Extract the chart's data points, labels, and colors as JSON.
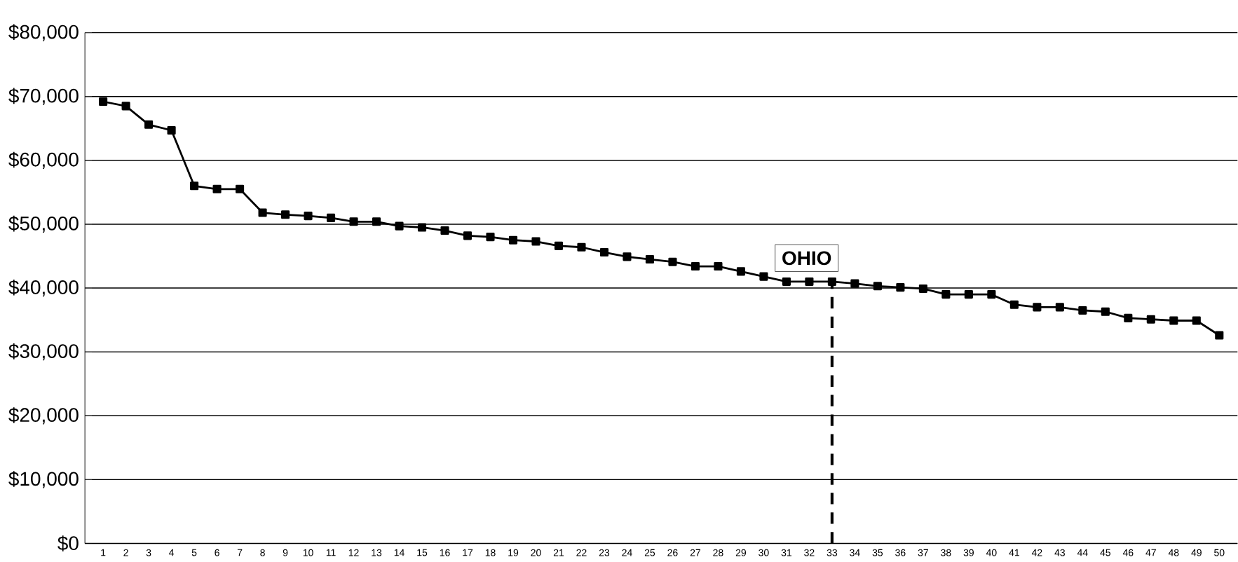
{
  "chart_data": {
    "type": "line",
    "categories": [
      "1",
      "2",
      "3",
      "4",
      "5",
      "6",
      "7",
      "8",
      "9",
      "10",
      "11",
      "12",
      "13",
      "14",
      "15",
      "16",
      "17",
      "18",
      "19",
      "20",
      "21",
      "22",
      "23",
      "24",
      "25",
      "26",
      "27",
      "28",
      "29",
      "30",
      "31",
      "32",
      "33",
      "34",
      "35",
      "36",
      "37",
      "38",
      "39",
      "40",
      "41",
      "42",
      "43",
      "44",
      "45",
      "46",
      "47",
      "48",
      "49",
      "50"
    ],
    "series": [
      {
        "color": "#000000",
        "values": [
          69200,
          68500,
          65600,
          64700,
          56000,
          55500,
          55500,
          51800,
          51500,
          51300,
          51000,
          50400,
          50400,
          49700,
          49500,
          49000,
          48200,
          48000,
          47500,
          47300,
          46600,
          46400,
          45600,
          44900,
          44500,
          44100,
          43400,
          43400,
          42600,
          41800,
          41000,
          41000,
          41000,
          40700,
          40300,
          40100,
          39900,
          39000,
          39000,
          39000,
          37400,
          37000,
          37000,
          36500,
          36300,
          35300,
          35100,
          34900,
          34900,
          32600
        ]
      }
    ],
    "ylim": [
      0,
      80000
    ],
    "yticks": [
      {
        "value": 0,
        "label": "$0"
      },
      {
        "value": 10000,
        "label": "$10,000"
      },
      {
        "value": 20000,
        "label": "$20,000"
      },
      {
        "value": 30000,
        "label": "$30,000"
      },
      {
        "value": 40000,
        "label": "$40,000"
      },
      {
        "value": 50000,
        "label": "$50,000"
      },
      {
        "value": 60000,
        "label": "$60,000"
      },
      {
        "value": 70000,
        "label": "$70,000"
      },
      {
        "value": 80000,
        "label": "$80,000"
      }
    ],
    "grid": "y",
    "marker": "square",
    "line_style": "solid",
    "ref_lines": [
      {
        "axis": "x",
        "value": "33",
        "color": "#000000",
        "line_style": "dashed"
      }
    ],
    "annotations": [
      {
        "text": "OHIO",
        "x": "33",
        "y": 41000
      }
    ]
  }
}
